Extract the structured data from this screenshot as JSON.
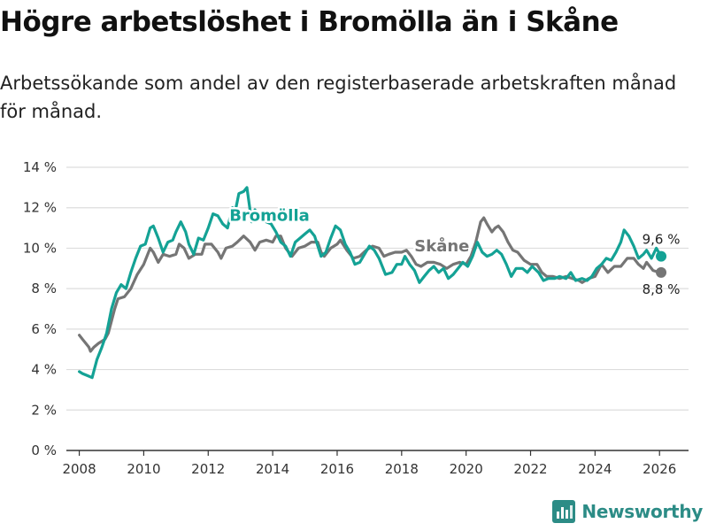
{
  "colors": {
    "bromolla": "#14a295",
    "skane": "#757575",
    "grid": "#dddddd",
    "axis": "#333333",
    "brand": "#2c8c86"
  },
  "branding": {
    "name": "Newsworthy",
    "icon": "bar-chart-logo-icon"
  },
  "chart_data": {
    "type": "line",
    "title": "Högre arbetslöshet i Bromölla än i Skåne",
    "subtitle": "Arbetssökande som andel av den registerbaserade arbetskraften månad för månad.",
    "xlabel": "",
    "ylabel": "",
    "xlim": [
      2007.6,
      2026.9
    ],
    "ylim": [
      0,
      14
    ],
    "x_ticks": [
      {
        "value": 2008,
        "label": "2008"
      },
      {
        "value": 2010,
        "label": "2010"
      },
      {
        "value": 2012,
        "label": "2012"
      },
      {
        "value": 2014,
        "label": "2014"
      },
      {
        "value": 2016,
        "label": "2016"
      },
      {
        "value": 2018,
        "label": "2018"
      },
      {
        "value": 2020,
        "label": "2020"
      },
      {
        "value": 2022,
        "label": "2022"
      },
      {
        "value": 2024,
        "label": "2024"
      },
      {
        "value": 2026,
        "label": "2026"
      }
    ],
    "y_ticks": [
      {
        "value": 0,
        "label": "0 %"
      },
      {
        "value": 2,
        "label": "2 %"
      },
      {
        "value": 4,
        "label": "4 %"
      },
      {
        "value": 6,
        "label": "6 %"
      },
      {
        "value": 8,
        "label": "8 %"
      },
      {
        "value": 10,
        "label": "10 %"
      },
      {
        "value": 12,
        "label": "12 %"
      },
      {
        "value": 14,
        "label": "14 %"
      }
    ],
    "grid": true,
    "series": [
      {
        "name": "Skåne",
        "color": "#757575",
        "label_x": 2019.25,
        "label_y": 9.85,
        "end_label": "8,8 %",
        "points": [
          [
            2008.0,
            5.7
          ],
          [
            2008.1,
            5.5
          ],
          [
            2008.2,
            5.3
          ],
          [
            2008.3,
            5.1
          ],
          [
            2008.35,
            4.9
          ],
          [
            2008.45,
            5.1
          ],
          [
            2008.6,
            5.3
          ],
          [
            2008.8,
            5.5
          ],
          [
            2008.9,
            5.8
          ],
          [
            2009.0,
            6.4
          ],
          [
            2009.1,
            7.0
          ],
          [
            2009.2,
            7.5
          ],
          [
            2009.4,
            7.6
          ],
          [
            2009.6,
            8.0
          ],
          [
            2009.8,
            8.7
          ],
          [
            2010.0,
            9.2
          ],
          [
            2010.2,
            10.0
          ],
          [
            2010.3,
            9.8
          ],
          [
            2010.45,
            9.3
          ],
          [
            2010.6,
            9.7
          ],
          [
            2010.8,
            9.6
          ],
          [
            2011.0,
            9.7
          ],
          [
            2011.1,
            10.2
          ],
          [
            2011.25,
            10.0
          ],
          [
            2011.4,
            9.5
          ],
          [
            2011.6,
            9.7
          ],
          [
            2011.8,
            9.7
          ],
          [
            2011.9,
            10.2
          ],
          [
            2012.1,
            10.2
          ],
          [
            2012.3,
            9.8
          ],
          [
            2012.4,
            9.5
          ],
          [
            2012.55,
            10.0
          ],
          [
            2012.75,
            10.1
          ],
          [
            2012.9,
            10.3
          ],
          [
            2013.1,
            10.6
          ],
          [
            2013.3,
            10.3
          ],
          [
            2013.45,
            9.9
          ],
          [
            2013.6,
            10.3
          ],
          [
            2013.8,
            10.4
          ],
          [
            2014.0,
            10.3
          ],
          [
            2014.1,
            10.6
          ],
          [
            2014.25,
            10.6
          ],
          [
            2014.4,
            10.0
          ],
          [
            2014.6,
            9.6
          ],
          [
            2014.8,
            10.0
          ],
          [
            2015.0,
            10.1
          ],
          [
            2015.2,
            10.3
          ],
          [
            2015.4,
            10.3
          ],
          [
            2015.5,
            9.8
          ],
          [
            2015.6,
            9.6
          ],
          [
            2015.8,
            10.0
          ],
          [
            2016.0,
            10.2
          ],
          [
            2016.1,
            10.4
          ],
          [
            2016.3,
            9.9
          ],
          [
            2016.5,
            9.5
          ],
          [
            2016.7,
            9.6
          ],
          [
            2016.9,
            9.9
          ],
          [
            2017.1,
            10.1
          ],
          [
            2017.3,
            10.0
          ],
          [
            2017.45,
            9.6
          ],
          [
            2017.6,
            9.7
          ],
          [
            2017.8,
            9.8
          ],
          [
            2018.0,
            9.8
          ],
          [
            2018.15,
            9.9
          ],
          [
            2018.3,
            9.6
          ],
          [
            2018.45,
            9.2
          ],
          [
            2018.6,
            9.1
          ],
          [
            2018.8,
            9.3
          ],
          [
            2019.0,
            9.3
          ],
          [
            2019.2,
            9.2
          ],
          [
            2019.4,
            9.0
          ],
          [
            2019.6,
            9.2
          ],
          [
            2019.8,
            9.3
          ],
          [
            2020.0,
            9.2
          ],
          [
            2020.15,
            9.6
          ],
          [
            2020.3,
            10.3
          ],
          [
            2020.45,
            11.3
          ],
          [
            2020.55,
            11.5
          ],
          [
            2020.65,
            11.2
          ],
          [
            2020.8,
            10.8
          ],
          [
            2020.9,
            11.0
          ],
          [
            2021.0,
            11.1
          ],
          [
            2021.15,
            10.8
          ],
          [
            2021.3,
            10.3
          ],
          [
            2021.45,
            9.9
          ],
          [
            2021.6,
            9.8
          ],
          [
            2021.8,
            9.4
          ],
          [
            2022.0,
            9.2
          ],
          [
            2022.2,
            9.2
          ],
          [
            2022.35,
            8.8
          ],
          [
            2022.5,
            8.6
          ],
          [
            2022.7,
            8.6
          ],
          [
            2022.9,
            8.5
          ],
          [
            2023.1,
            8.6
          ],
          [
            2023.3,
            8.5
          ],
          [
            2023.5,
            8.4
          ],
          [
            2023.6,
            8.3
          ],
          [
            2023.8,
            8.5
          ],
          [
            2024.0,
            8.6
          ],
          [
            2024.2,
            9.2
          ],
          [
            2024.4,
            8.8
          ],
          [
            2024.6,
            9.1
          ],
          [
            2024.8,
            9.1
          ],
          [
            2025.0,
            9.5
          ],
          [
            2025.2,
            9.5
          ],
          [
            2025.35,
            9.2
          ],
          [
            2025.5,
            9.0
          ],
          [
            2025.6,
            9.3
          ],
          [
            2025.8,
            8.9
          ],
          [
            2026.0,
            8.8
          ],
          [
            2026.05,
            8.8
          ]
        ]
      },
      {
        "name": "Bromölla",
        "color": "#14a295",
        "label_x": 2013.9,
        "label_y": 11.35,
        "end_label": "9,6 %",
        "points": [
          [
            2008.0,
            3.9
          ],
          [
            2008.1,
            3.8
          ],
          [
            2008.25,
            3.7
          ],
          [
            2008.4,
            3.6
          ],
          [
            2008.55,
            4.5
          ],
          [
            2008.7,
            5.1
          ],
          [
            2008.85,
            5.8
          ],
          [
            2009.0,
            7.0
          ],
          [
            2009.15,
            7.8
          ],
          [
            2009.3,
            8.2
          ],
          [
            2009.45,
            8.0
          ],
          [
            2009.6,
            8.8
          ],
          [
            2009.75,
            9.5
          ],
          [
            2009.9,
            10.1
          ],
          [
            2010.05,
            10.2
          ],
          [
            2010.2,
            11.0
          ],
          [
            2010.3,
            11.1
          ],
          [
            2010.45,
            10.5
          ],
          [
            2010.6,
            9.8
          ],
          [
            2010.75,
            10.3
          ],
          [
            2010.9,
            10.4
          ],
          [
            2011.0,
            10.8
          ],
          [
            2011.15,
            11.3
          ],
          [
            2011.3,
            10.8
          ],
          [
            2011.4,
            10.2
          ],
          [
            2011.55,
            9.7
          ],
          [
            2011.7,
            10.5
          ],
          [
            2011.85,
            10.4
          ],
          [
            2012.0,
            11.0
          ],
          [
            2012.15,
            11.7
          ],
          [
            2012.3,
            11.6
          ],
          [
            2012.45,
            11.2
          ],
          [
            2012.6,
            11.0
          ],
          [
            2012.75,
            12.0
          ],
          [
            2012.85,
            11.9
          ],
          [
            2012.95,
            12.7
          ],
          [
            2013.1,
            12.8
          ],
          [
            2013.2,
            13.0
          ],
          [
            2013.35,
            11.3
          ],
          [
            2013.45,
            11.9
          ],
          [
            2013.6,
            11.4
          ],
          [
            2013.8,
            11.3
          ],
          [
            2013.95,
            11.2
          ],
          [
            2014.1,
            10.8
          ],
          [
            2014.25,
            10.3
          ],
          [
            2014.4,
            10.1
          ],
          [
            2014.55,
            9.6
          ],
          [
            2014.7,
            10.3
          ],
          [
            2014.85,
            10.5
          ],
          [
            2015.0,
            10.7
          ],
          [
            2015.15,
            10.9
          ],
          [
            2015.3,
            10.6
          ],
          [
            2015.5,
            9.6
          ],
          [
            2015.65,
            9.8
          ],
          [
            2015.8,
            10.5
          ],
          [
            2015.95,
            11.1
          ],
          [
            2016.1,
            10.9
          ],
          [
            2016.25,
            10.2
          ],
          [
            2016.4,
            9.8
          ],
          [
            2016.55,
            9.2
          ],
          [
            2016.7,
            9.3
          ],
          [
            2016.85,
            9.7
          ],
          [
            2017.0,
            10.1
          ],
          [
            2017.15,
            9.9
          ],
          [
            2017.3,
            9.5
          ],
          [
            2017.5,
            8.7
          ],
          [
            2017.7,
            8.8
          ],
          [
            2017.85,
            9.2
          ],
          [
            2018.0,
            9.2
          ],
          [
            2018.1,
            9.6
          ],
          [
            2018.25,
            9.2
          ],
          [
            2018.4,
            8.9
          ],
          [
            2018.55,
            8.3
          ],
          [
            2018.7,
            8.6
          ],
          [
            2018.85,
            8.9
          ],
          [
            2019.0,
            9.1
          ],
          [
            2019.15,
            8.8
          ],
          [
            2019.3,
            9.0
          ],
          [
            2019.45,
            8.5
          ],
          [
            2019.6,
            8.7
          ],
          [
            2019.75,
            9.0
          ],
          [
            2019.9,
            9.3
          ],
          [
            2020.05,
            9.1
          ],
          [
            2020.2,
            9.6
          ],
          [
            2020.35,
            10.3
          ],
          [
            2020.5,
            9.8
          ],
          [
            2020.65,
            9.6
          ],
          [
            2020.8,
            9.7
          ],
          [
            2020.95,
            9.9
          ],
          [
            2021.1,
            9.7
          ],
          [
            2021.25,
            9.2
          ],
          [
            2021.4,
            8.6
          ],
          [
            2021.55,
            9.0
          ],
          [
            2021.75,
            9.0
          ],
          [
            2021.9,
            8.8
          ],
          [
            2022.05,
            9.1
          ],
          [
            2022.25,
            8.8
          ],
          [
            2022.4,
            8.4
          ],
          [
            2022.55,
            8.5
          ],
          [
            2022.75,
            8.5
          ],
          [
            2022.9,
            8.6
          ],
          [
            2023.1,
            8.5
          ],
          [
            2023.25,
            8.8
          ],
          [
            2023.4,
            8.4
          ],
          [
            2023.6,
            8.5
          ],
          [
            2023.75,
            8.4
          ],
          [
            2023.9,
            8.6
          ],
          [
            2024.05,
            9.0
          ],
          [
            2024.2,
            9.2
          ],
          [
            2024.35,
            9.5
          ],
          [
            2024.5,
            9.4
          ],
          [
            2024.65,
            9.8
          ],
          [
            2024.8,
            10.3
          ],
          [
            2024.9,
            10.9
          ],
          [
            2025.05,
            10.6
          ],
          [
            2025.2,
            10.1
          ],
          [
            2025.35,
            9.5
          ],
          [
            2025.5,
            9.7
          ],
          [
            2025.6,
            9.9
          ],
          [
            2025.75,
            9.5
          ],
          [
            2025.9,
            10.0
          ],
          [
            2026.05,
            9.6
          ]
        ]
      }
    ]
  }
}
